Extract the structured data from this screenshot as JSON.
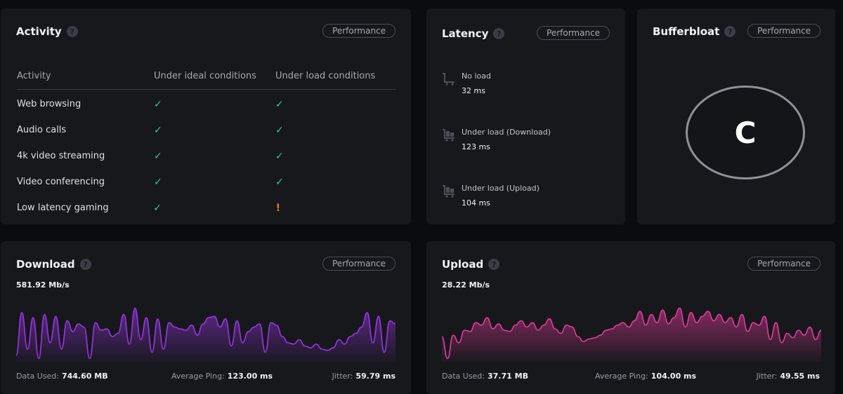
{
  "activity": {
    "title": "Activity",
    "perf_label": "Performance",
    "headers": [
      "Activity",
      "Under ideal conditions",
      "Under load conditions"
    ],
    "rows": [
      {
        "name": "Web browsing",
        "ideal": "✓",
        "load": "✓"
      },
      {
        "name": "Audio calls",
        "ideal": "✓",
        "load": "✓"
      },
      {
        "name": "4k video streaming",
        "ideal": "✓",
        "load": "✓"
      },
      {
        "name": "Video conferencing",
        "ideal": "✓",
        "load": "✓"
      },
      {
        "name": "Low latency gaming",
        "ideal": "✓",
        "load": "!"
      }
    ]
  },
  "latency": {
    "title": "Latency",
    "perf_label": "Performance",
    "items": [
      {
        "label": "No load",
        "value": "32 ms",
        "icon": "cart-empty-icon"
      },
      {
        "label": "Under load (Download)",
        "value": "123 ms",
        "icon": "cart-loaded-icon"
      },
      {
        "label": "Under load (Upload)",
        "value": "104 ms",
        "icon": "cart-loaded-icon"
      }
    ]
  },
  "bufferbloat": {
    "title": "Bufferbloat",
    "perf_label": "Performance",
    "grade": "C"
  },
  "download": {
    "title": "Download",
    "perf_label": "Performance",
    "speed": "581.92 Mb/s",
    "data_used_label": "Data Used:",
    "data_used": "744.60 MB",
    "ping_label": "Average Ping:",
    "ping": "123.00 ms",
    "jitter_label": "Jitter:",
    "jitter": "59.79 ms",
    "color": "#9b35e6",
    "samples": [
      10,
      78,
      20,
      70,
      5,
      75,
      30,
      72,
      20,
      65,
      48,
      60,
      55,
      5,
      62,
      50,
      52,
      40,
      45,
      75,
      28,
      85,
      35,
      70,
      15,
      68,
      20,
      62,
      55,
      52,
      50,
      58,
      42,
      60,
      70,
      72,
      55,
      68,
      25,
      65,
      30,
      48,
      55,
      60,
      15,
      62,
      58,
      40,
      30,
      28,
      35,
      25,
      22,
      28,
      20,
      18,
      22,
      35,
      28,
      40,
      45,
      55,
      78,
      30,
      72,
      15,
      65,
      60
    ]
  },
  "upload": {
    "title": "Upload",
    "perf_label": "Performance",
    "speed": "28.22 Mb/s",
    "data_used_label": "Data Used:",
    "data_used": "37.71 MB",
    "ping_label": "Average Ping:",
    "ping": "104.00 ms",
    "jitter_label": "Jitter:",
    "jitter": "49.55 ms",
    "color": "#e23b9a",
    "samples": [
      40,
      5,
      42,
      30,
      50,
      48,
      62,
      58,
      70,
      52,
      60,
      50,
      48,
      58,
      65,
      55,
      62,
      50,
      58,
      68,
      52,
      45,
      58,
      55,
      40,
      32,
      36,
      38,
      42,
      50,
      52,
      58,
      62,
      55,
      65,
      80,
      58,
      75,
      62,
      82,
      60,
      70,
      85,
      55,
      78,
      62,
      72,
      80,
      65,
      75,
      62,
      70,
      55,
      75,
      48,
      62,
      58,
      72,
      35,
      62,
      30,
      45,
      38,
      50,
      42,
      55,
      35,
      50
    ]
  }
}
